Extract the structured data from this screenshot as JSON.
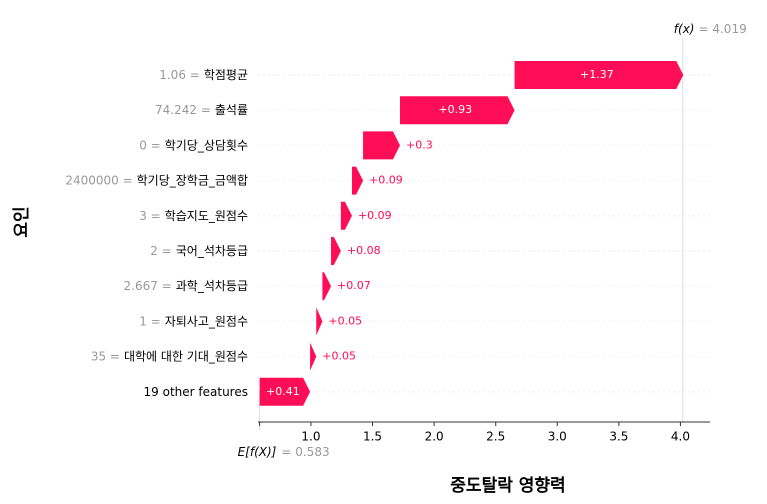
{
  "chart_data": {
    "type": "waterfall",
    "xlabel": "중도탈락 영향력",
    "ylabel": "요인",
    "categories": [
      "학점평균",
      "출석률",
      "학기당_상담횟수",
      "학기당_장학금_금액합",
      "학습지도_원점수",
      "국어_석차등급",
      "과학_석차등급",
      "자퇴사고_원점수",
      "대학에 대한 기대_원점수",
      "19 other features"
    ],
    "feature_values": [
      "1.06 =",
      "74.242 =",
      "0 =",
      "2400000 =",
      "3 =",
      "2 =",
      "2.667 =",
      "1 =",
      "35 =",
      null
    ],
    "values": [
      1.37,
      0.93,
      0.3,
      0.09,
      0.09,
      0.08,
      0.07,
      0.05,
      0.05,
      0.41
    ],
    "value_labels": [
      "+1.37",
      "+0.93",
      "+0.3",
      "+0.09",
      "+0.09",
      "+0.08",
      "+0.07",
      "+0.05",
      "+0.05",
      "+0.41"
    ],
    "color": "#ff0d57",
    "base": {
      "label": "E[f(X)]",
      "value": 0.583,
      "value_label": "= 0.583"
    },
    "output": {
      "label": "f(x)",
      "value": 4.019,
      "value_label": "= 4.019"
    },
    "xlim": [
      0.57,
      4.24
    ],
    "xticks": [
      {
        "value": 1,
        "label": "1.0"
      },
      1.5,
      {
        "value": 2,
        "label": "2.0"
      },
      2.5,
      {
        "value": 3,
        "label": "3.0"
      },
      3.5,
      {
        "value": 4,
        "label": "4.0"
      }
    ]
  }
}
